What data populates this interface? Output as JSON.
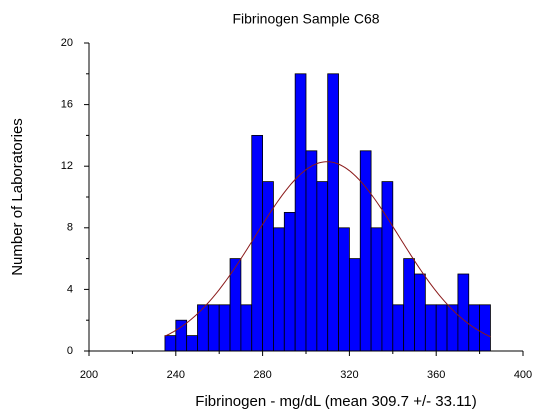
{
  "chart_data": {
    "type": "histogram",
    "title": "Fibrinogen Sample C68",
    "xlabel": "Fibrinogen - mg/dL (mean 309.7 +/- 33.11)",
    "ylabel": "Number of Laboratories",
    "bins": [
      235,
      240,
      245,
      250,
      255,
      260,
      265,
      270,
      275,
      280,
      285,
      290,
      295,
      300,
      305,
      310,
      315,
      320,
      325,
      330,
      335,
      340,
      345,
      350,
      355,
      360,
      365,
      370,
      375,
      380,
      385
    ],
    "values": [
      1,
      2,
      1,
      3,
      3,
      3,
      6,
      3,
      14,
      11,
      8,
      9,
      18,
      13,
      11,
      18,
      8,
      6,
      13,
      8,
      11,
      3,
      6,
      5,
      3,
      3,
      3,
      5,
      3,
      3
    ],
    "color": "#0000ff",
    "curve": {
      "mean": 309.7,
      "sd": 33.11,
      "color": "#8b1a1a"
    },
    "xlim": [
      200,
      400
    ],
    "xticks": [
      200,
      240,
      280,
      320,
      360,
      400
    ],
    "xminorticks": [
      220,
      260,
      300,
      340,
      380
    ],
    "ylim": [
      0,
      20
    ],
    "yticks": [
      0,
      4,
      8,
      12,
      16,
      20
    ],
    "yminorticks": [
      2,
      6,
      10,
      14,
      18
    ]
  }
}
